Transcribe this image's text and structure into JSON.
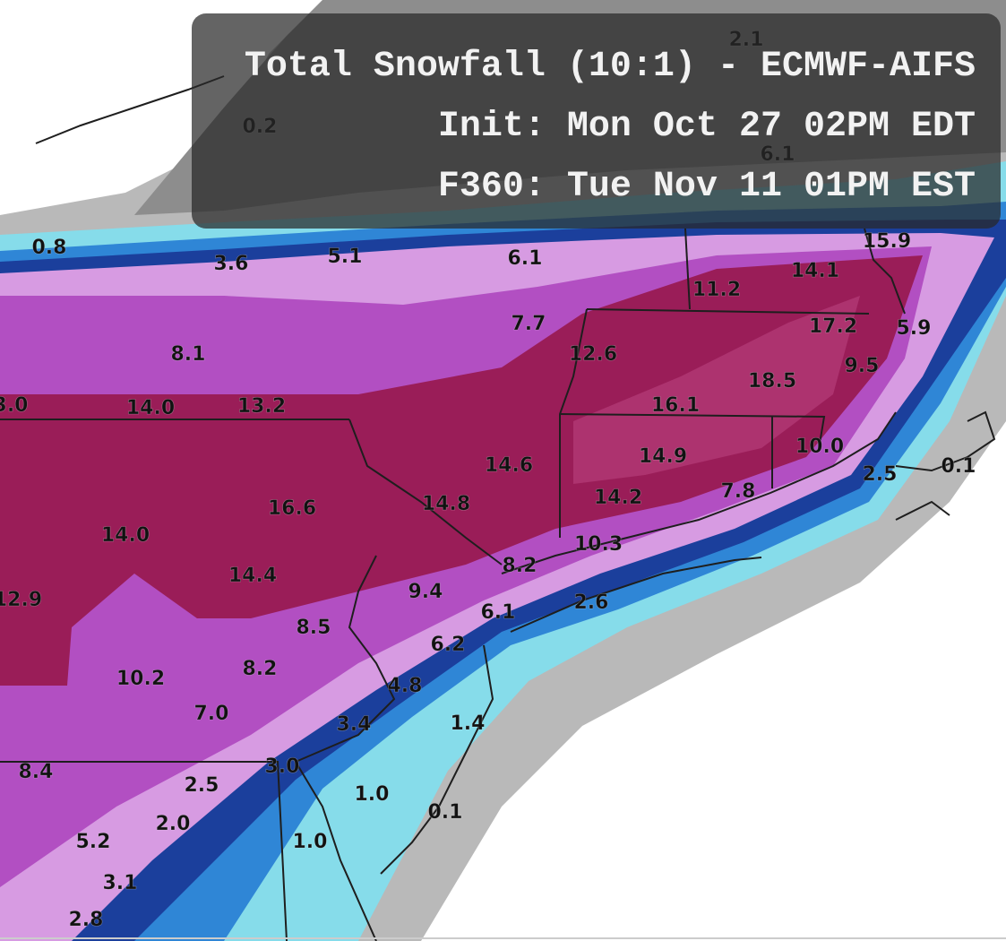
{
  "header": {
    "title": "Total Snowfall (10:1) - ECMWF-AIFS",
    "init": "Init: Mon Oct 27 02PM EDT",
    "forecast": "F360: Tue Nov 11 01PM EST"
  },
  "labels": [
    "0.2",
    "2.1",
    "6.1",
    "0.8",
    "3.6",
    "5.1",
    "6.1",
    "15.9",
    "14.1",
    "11.2",
    "7.7",
    "17.2",
    "5.9",
    "8.1",
    "12.6",
    "9.5",
    "18.5",
    "3.0",
    "14.0",
    "13.2",
    "16.1",
    "10.0",
    "14.9",
    "14.6",
    "2.5",
    "0.1",
    "14.2",
    "7.8",
    "16.6",
    "14.8",
    "14.0",
    "10.3",
    "8.2",
    "14.4",
    "12.9",
    "9.4",
    "2.6",
    "6.1",
    "8.5",
    "6.2",
    "10.2",
    "8.2",
    "4.8",
    "7.0",
    "3.4",
    "1.4",
    "8.4",
    "3.0",
    "2.5",
    "1.0",
    "2.0",
    "0.1",
    "5.2",
    "1.0",
    "3.1",
    "2.8"
  ]
}
